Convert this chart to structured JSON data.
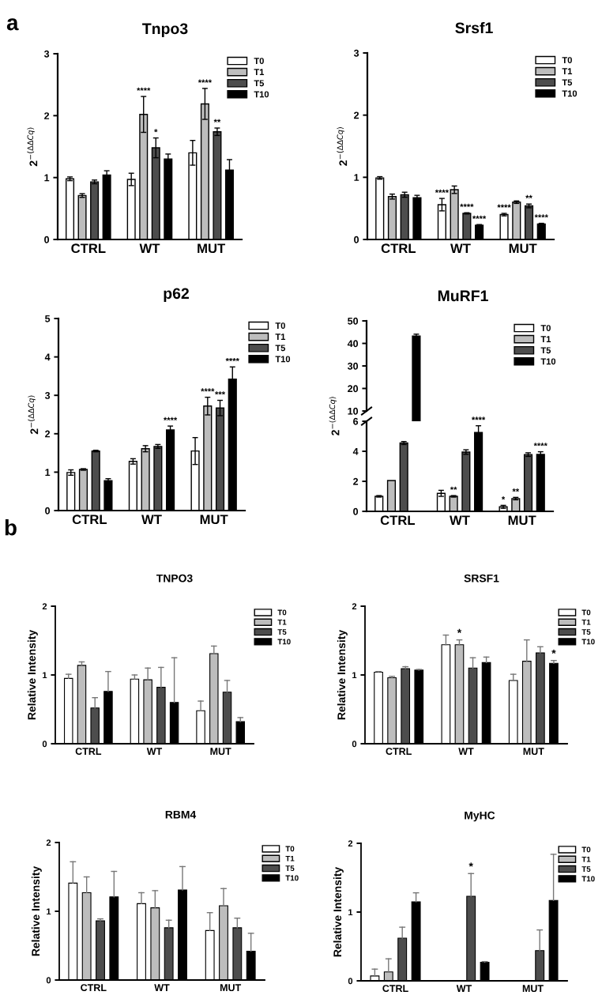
{
  "chart_data": [
    {
      "type": "bar",
      "title": "Tnpo3",
      "ylabel": "2$^{−(ΔΔCq)}$",
      "categories": [
        "CTRL",
        "WT",
        "MUT"
      ],
      "ylim": [
        0,
        3
      ],
      "yticks": [
        0,
        1,
        2,
        3
      ],
      "legend": "top right",
      "annotations": [
        "a",
        "****",
        "*",
        "****",
        "**"
      ],
      "series": [
        {
          "name": "T0",
          "color": "#ffffff",
          "values": [
            0.98,
            0.97,
            1.4
          ],
          "errors": [
            0.03,
            0.1,
            0.2
          ]
        },
        {
          "name": "T1",
          "color": "#bdbdbd",
          "values": [
            0.71,
            2.02,
            2.19
          ],
          "errors": [
            0.03,
            0.29,
            0.25
          ]
        },
        {
          "name": "T5",
          "color": "#4d4d4d",
          "values": [
            0.93,
            1.48,
            1.74
          ],
          "errors": [
            0.03,
            0.16,
            0.06
          ]
        },
        {
          "name": "T10",
          "color": "#000000",
          "values": [
            1.04,
            1.3,
            1.12
          ],
          "errors": [
            0.07,
            0.08,
            0.17
          ]
        }
      ]
    },
    {
      "type": "bar",
      "title": "Srsf1",
      "ylabel": "2$^{−(ΔΔCq)}$",
      "categories": [
        "CTRL",
        "WT",
        "MUT"
      ],
      "ylim": [
        0,
        3
      ],
      "yticks": [
        0,
        1,
        2,
        3
      ],
      "legend": "top right",
      "annotations": [
        "****",
        "****",
        "****",
        "****",
        "**",
        "****"
      ],
      "series": [
        {
          "name": "T0",
          "color": "#ffffff",
          "values": [
            0.99,
            0.56,
            0.4
          ],
          "errors": [
            0.02,
            0.1,
            0.02
          ]
        },
        {
          "name": "T1",
          "color": "#bdbdbd",
          "values": [
            0.69,
            0.8,
            0.6
          ],
          "errors": [
            0.04,
            0.06,
            0.02
          ]
        },
        {
          "name": "T5",
          "color": "#4d4d4d",
          "values": [
            0.72,
            0.42,
            0.54
          ],
          "errors": [
            0.04,
            0.01,
            0.03
          ]
        },
        {
          "name": "T10",
          "color": "#000000",
          "values": [
            0.67,
            0.23,
            0.25
          ],
          "errors": [
            0.04,
            0.01,
            0.01
          ]
        }
      ]
    },
    {
      "type": "bar",
      "title": "p62",
      "ylabel": "2$^{−(ΔΔCq)}$",
      "categories": [
        "CTRL",
        "WT",
        "MUT"
      ],
      "ylim": [
        0,
        5
      ],
      "yticks": [
        0,
        1,
        2,
        3,
        4,
        5
      ],
      "legend": "top right",
      "annotations": [
        "****",
        "****",
        "***",
        "****"
      ],
      "series": [
        {
          "name": "T0",
          "color": "#ffffff",
          "values": [
            0.99,
            1.28,
            1.55
          ],
          "errors": [
            0.07,
            0.07,
            0.35
          ]
        },
        {
          "name": "T1",
          "color": "#bdbdbd",
          "values": [
            1.07,
            1.61,
            2.72
          ],
          "errors": [
            0.02,
            0.08,
            0.23
          ]
        },
        {
          "name": "T5",
          "color": "#4d4d4d",
          "values": [
            1.55,
            1.67,
            2.67
          ],
          "errors": [
            0.02,
            0.05,
            0.2
          ]
        },
        {
          "name": "T10",
          "color": "#000000",
          "values": [
            0.78,
            2.1,
            3.42
          ],
          "errors": [
            0.05,
            0.1,
            0.32
          ]
        }
      ]
    },
    {
      "type": "bar",
      "title": "MuRF1",
      "categories": [
        null,
        null,
        null
      ],
      "ylim": [
        10,
        50
      ],
      "yticks": [
        10,
        20,
        30,
        40,
        50
      ],
      "legend": "top right",
      "tick_labels": "y",
      "series": [
        {
          "name": "T0",
          "color": "#ffffff",
          "values": [
            null,
            null,
            null
          ]
        },
        {
          "name": "T1",
          "color": "#bdbdbd",
          "values": [
            null,
            null,
            null
          ]
        },
        {
          "name": "T5",
          "color": "#4d4d4d",
          "values": [
            null,
            null,
            null
          ]
        },
        {
          "name": "T10",
          "color": "#000000",
          "values": [
            43.3,
            null,
            null
          ],
          "errors": [
            0.8,
            null,
            null
          ]
        }
      ]
    },
    {
      "type": "bar",
      "ylabel": "2$^{−(ΔΔCq)}$",
      "categories": [
        "CTRL",
        "WT",
        "MUT"
      ],
      "ylim": [
        0,
        6
      ],
      "yticks": [
        0,
        2,
        4,
        6
      ],
      "annotations": [
        "**",
        "****",
        "*",
        "**",
        "****"
      ],
      "series": [
        {
          "color": "#ffffff",
          "values": [
            1.0,
            1.2,
            0.3
          ],
          "errors": [
            0.05,
            0.2,
            0.1
          ]
        },
        {
          "color": "#bdbdbd",
          "values": [
            2.05,
            1.0,
            0.85
          ],
          "errors": [
            null,
            0.05,
            0.08
          ]
        },
        {
          "color": "#4d4d4d",
          "values": [
            4.55,
            3.95,
            3.78
          ],
          "errors": [
            0.1,
            0.15,
            0.12
          ]
        },
        {
          "color": "#000000",
          "values": [
            null,
            5.25,
            3.79
          ],
          "errors": [
            null,
            0.45,
            0.18
          ]
        }
      ]
    },
    {
      "type": "bar",
      "title": "TNPO3",
      "ylabel": "Relative Intensity",
      "categories": [
        "CTRL",
        "WT",
        "MUT"
      ],
      "ylim": [
        0,
        2
      ],
      "yticks": [
        0,
        1,
        2
      ],
      "legend": "top right",
      "annotations": [
        "b"
      ],
      "series": [
        {
          "name": "T0",
          "color": "#ffffff",
          "values": [
            0.95,
            0.94,
            0.48
          ],
          "errors": [
            [
              0.95,
              1.01
            ],
            [
              0.94,
              1.0
            ],
            [
              0.48,
              0.62
            ]
          ]
        },
        {
          "name": "T1",
          "color": "#bdbdbd",
          "values": [
            1.14,
            0.93,
            1.31
          ],
          "errors": [
            [
              1.14,
              1.19
            ],
            [
              0.93,
              1.1
            ],
            [
              1.31,
              1.42
            ]
          ]
        },
        {
          "name": "T5",
          "color": "#4d4d4d",
          "values": [
            0.52,
            0.82,
            0.75
          ],
          "errors": [
            [
              0.52,
              0.67
            ],
            [
              0.82,
              1.11
            ],
            [
              0.75,
              0.92
            ]
          ]
        },
        {
          "name": "T10",
          "color": "#000000",
          "values": [
            0.76,
            0.6,
            0.32
          ],
          "errors": [
            [
              0.76,
              1.05
            ],
            [
              0.6,
              1.25
            ],
            [
              0.32,
              0.38
            ]
          ]
        }
      ]
    },
    {
      "type": "bar",
      "title": "SRSF1",
      "ylabel": "Relative Intensity",
      "categories": [
        "CTRL",
        "WT",
        "MUT"
      ],
      "ylim": [
        0,
        2
      ],
      "yticks": [
        0,
        1,
        2
      ],
      "legend": "top right",
      "annotations": [
        "*",
        "*"
      ],
      "series": [
        {
          "name": "T0",
          "color": "#ffffff",
          "values": [
            1.04,
            1.44,
            0.92
          ],
          "errors": [
            [
              1.04,
              1.05
            ],
            [
              1.44,
              1.58
            ],
            [
              0.92,
              1.01
            ]
          ]
        },
        {
          "name": "T1",
          "color": "#bdbdbd",
          "values": [
            0.96,
            1.44,
            1.2
          ],
          "errors": [
            [
              0.96,
              0.98
            ],
            [
              1.44,
              1.51
            ],
            [
              1.2,
              1.51
            ]
          ]
        },
        {
          "name": "T5",
          "color": "#4d4d4d",
          "values": [
            1.09,
            1.1,
            1.32
          ],
          "errors": [
            [
              1.09,
              1.12
            ],
            [
              1.1,
              1.25
            ],
            [
              1.32,
              1.41
            ]
          ]
        },
        {
          "name": "T10",
          "color": "#000000",
          "values": [
            1.07,
            1.18,
            1.17
          ],
          "errors": [
            [
              1.07,
              1.08
            ],
            [
              1.18,
              1.26
            ],
            [
              1.17,
              1.21
            ]
          ]
        }
      ]
    },
    {
      "type": "bar",
      "title": "RBM4",
      "ylabel": "Relative Intensity",
      "categories": [
        "CTRL",
        "WT",
        "MUT"
      ],
      "ylim": [
        0,
        2
      ],
      "yticks": [
        0,
        1,
        2
      ],
      "legend": "top right",
      "series": [
        {
          "name": "T0",
          "color": "#ffffff",
          "values": [
            1.41,
            1.11,
            0.72
          ],
          "errors": [
            [
              1.41,
              1.72
            ],
            [
              1.11,
              1.27
            ],
            [
              0.72,
              0.98
            ]
          ]
        },
        {
          "name": "T1",
          "color": "#bdbdbd",
          "values": [
            1.27,
            1.05,
            1.08
          ],
          "errors": [
            [
              1.27,
              1.5
            ],
            [
              1.05,
              1.3
            ],
            [
              1.08,
              1.33
            ]
          ]
        },
        {
          "name": "T5",
          "color": "#4d4d4d",
          "values": [
            0.86,
            0.76,
            0.76
          ],
          "errors": [
            [
              0.86,
              0.89
            ],
            [
              0.76,
              0.87
            ],
            [
              0.76,
              0.9
            ]
          ]
        },
        {
          "name": "T10",
          "color": "#000000",
          "values": [
            1.21,
            1.31,
            0.42
          ],
          "errors": [
            [
              1.21,
              1.58
            ],
            [
              1.31,
              1.65
            ],
            [
              0.42,
              0.68
            ]
          ]
        }
      ]
    },
    {
      "type": "bar",
      "title": "MyHC",
      "ylabel": "Relative Intensity",
      "categories": [
        "CTRL",
        "WT",
        "MUT"
      ],
      "ylim": [
        0,
        2
      ],
      "yticks": [
        0,
        1,
        2
      ],
      "legend": "top right",
      "annotations": [
        "*"
      ],
      "series": [
        {
          "name": "T0",
          "color": "#ffffff",
          "values": [
            0.07,
            null,
            null
          ],
          "errors": [
            [
              0.07,
              0.17
            ],
            null,
            null
          ]
        },
        {
          "name": "T1",
          "color": "#bdbdbd",
          "values": [
            0.13,
            null,
            null
          ],
          "errors": [
            [
              0.13,
              0.32
            ],
            null,
            null
          ]
        },
        {
          "name": "T5",
          "color": "#4d4d4d",
          "values": [
            0.62,
            1.23,
            0.44
          ],
          "errors": [
            [
              0.62,
              0.78
            ],
            [
              1.23,
              1.56
            ],
            [
              0.44,
              0.74
            ]
          ]
        },
        {
          "name": "T10",
          "color": "#000000",
          "values": [
            1.15,
            0.27,
            1.17
          ],
          "errors": [
            [
              1.15,
              1.28
            ],
            [
              0.27,
              0.28
            ],
            [
              1.17,
              1.84
            ]
          ]
        }
      ]
    }
  ]
}
